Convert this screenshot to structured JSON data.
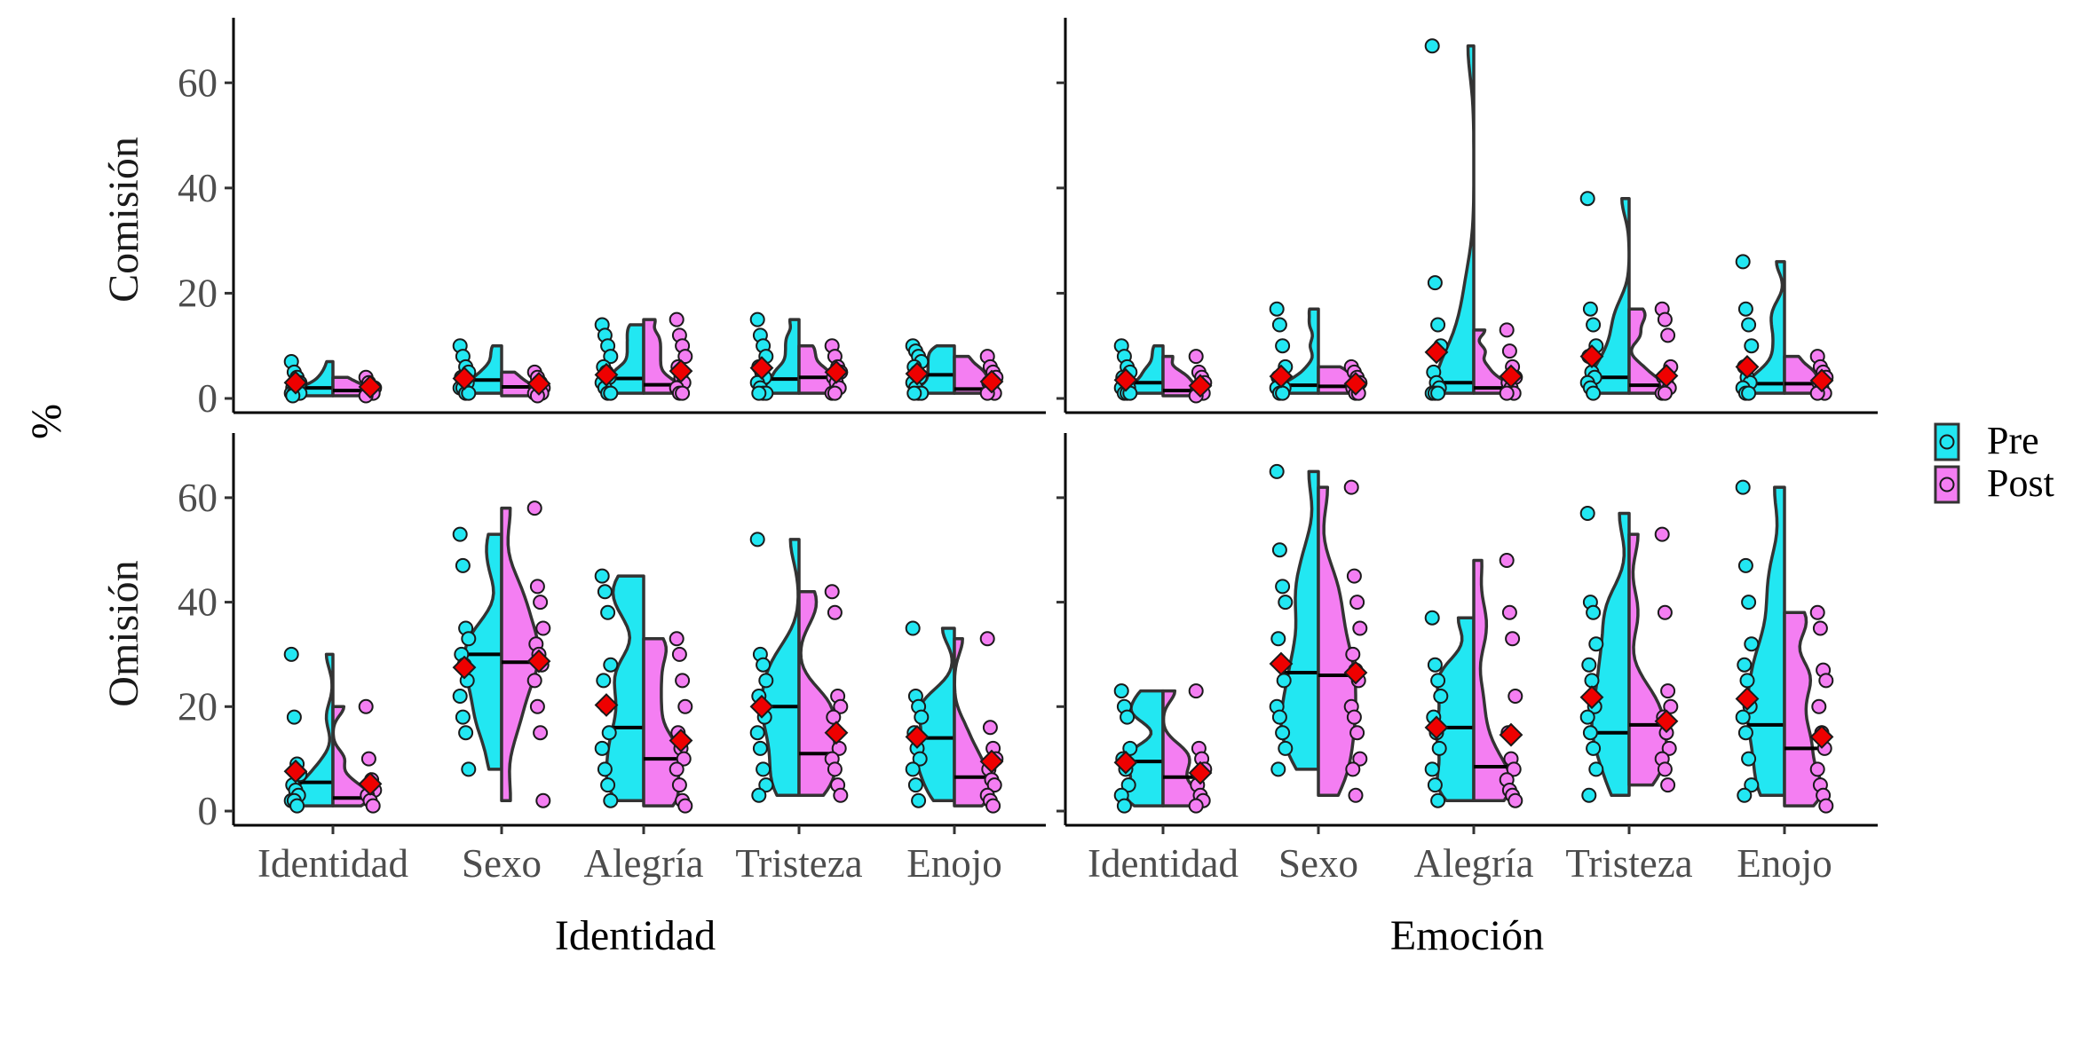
{
  "chart_data": {
    "type": "violin-point",
    "ylabel": "%",
    "ylim": [
      0,
      70
    ],
    "y_ticks": [
      0,
      20,
      40,
      60
    ],
    "row_labels": [
      "Comisión",
      "Omisión"
    ],
    "panel_xlabels": [
      "Identidad",
      "Emoción"
    ],
    "categories": [
      "Identidad",
      "Sexo",
      "Alegría",
      "Tristeza",
      "Enojo"
    ],
    "legend": {
      "position": "right",
      "entries": [
        "Pre",
        "Post"
      ]
    },
    "colors": {
      "pre": "#22e7f2",
      "post": "#f47ef2",
      "mean_marker": "#ee0000",
      "outline": "#333333"
    },
    "panels": [
      {
        "row": 0,
        "col": 0,
        "pre": [
          {
            "pts": [
              7,
              5,
              4,
              3,
              2,
              2,
              1,
              1,
              1,
              1,
              1,
              0.5
            ],
            "median": 2,
            "mean": 3
          },
          {
            "pts": [
              10,
              8,
              6,
              5,
              4,
              3,
              3,
              2,
              2,
              1,
              1
            ],
            "median": 3.5,
            "mean": 3.8
          },
          {
            "pts": [
              14,
              12,
              10,
              8,
              6,
              5,
              4,
              3,
              2,
              1,
              1
            ],
            "median": 3.8,
            "mean": 4.5
          },
          {
            "pts": [
              15,
              12,
              10,
              8,
              6,
              5,
              4,
              3,
              2,
              1,
              1,
              1
            ],
            "median": 3.7,
            "mean": 5.8
          },
          {
            "pts": [
              10,
              9,
              8,
              7,
              6,
              5,
              4,
              3,
              2,
              1,
              1,
              1
            ],
            "median": 4.5,
            "mean": 4.7
          }
        ],
        "post": [
          {
            "pts": [
              4,
              3,
              2,
              2,
              1,
              1,
              1,
              0.5
            ],
            "median": 1.5,
            "mean": 2.2
          },
          {
            "pts": [
              5,
              4,
              3,
              2,
              2,
              1,
              1,
              1,
              0.5
            ],
            "median": 2.2,
            "mean": 2.8
          },
          {
            "pts": [
              15,
              12,
              10,
              8,
              6,
              4,
              3,
              2,
              1,
              1
            ],
            "median": 2.6,
            "mean": 5.2
          },
          {
            "pts": [
              10,
              8,
              6,
              5,
              4,
              3,
              2,
              1,
              1
            ],
            "median": 4,
            "mean": 5
          },
          {
            "pts": [
              8,
              6,
              5,
              4,
              3,
              2,
              1,
              1
            ],
            "median": 1.8,
            "mean": 3.2
          }
        ]
      },
      {
        "row": 0,
        "col": 1,
        "pre": [
          {
            "pts": [
              10,
              8,
              6,
              5,
              4,
              3,
              2,
              2,
              1,
              1,
              1
            ],
            "median": 3,
            "mean": 3.5
          },
          {
            "pts": [
              17,
              14,
              10,
              6,
              4,
              3,
              2,
              2,
              1,
              1
            ],
            "median": 2.5,
            "mean": 4.2
          },
          {
            "pts": [
              67,
              22,
              14,
              10,
              5,
              3,
              2,
              1,
              1,
              1
            ],
            "median": 3,
            "mean": 8.8
          },
          {
            "pts": [
              38,
              17,
              14,
              10,
              8,
              5,
              4,
              3,
              2,
              1
            ],
            "median": 4,
            "mean": 8
          },
          {
            "pts": [
              26,
              17,
              14,
              10,
              6,
              4,
              3,
              2,
              1,
              1
            ],
            "median": 2.8,
            "mean": 6
          }
        ],
        "post": [
          {
            "pts": [
              8,
              5,
              4,
              3,
              2,
              1,
              1,
              0.5
            ],
            "median": 1.5,
            "mean": 2.4
          },
          {
            "pts": [
              6,
              5,
              4,
              3,
              2,
              1,
              1
            ],
            "median": 2.3,
            "mean": 2.8
          },
          {
            "pts": [
              13,
              9,
              6,
              4,
              3,
              2,
              1,
              1
            ],
            "median": 2,
            "mean": 4.2
          },
          {
            "pts": [
              17,
              15,
              12,
              6,
              4,
              3,
              2,
              1,
              1
            ],
            "median": 2.5,
            "mean": 4.3
          },
          {
            "pts": [
              8,
              6,
              5,
              4,
              3,
              2,
              1,
              1
            ],
            "median": 2.8,
            "mean": 3.4
          }
        ]
      },
      {
        "row": 1,
        "col": 0,
        "pre": [
          {
            "pts": [
              30,
              18,
              9,
              7,
              5,
              4,
              3,
              2,
              2,
              1
            ],
            "median": 5.5,
            "mean": 7.6
          },
          {
            "pts": [
              53,
              47,
              35,
              33,
              30,
              28,
              25,
              22,
              18,
              15,
              8
            ],
            "median": 30,
            "mean": 27.5
          },
          {
            "pts": [
              45,
              42,
              38,
              28,
              25,
              20,
              15,
              12,
              8,
              5,
              2
            ],
            "median": 16,
            "mean": 20.3
          },
          {
            "pts": [
              52,
              30,
              28,
              25,
              22,
              20,
              18,
              15,
              12,
              8,
              5,
              3
            ],
            "median": 20,
            "mean": 20
          },
          {
            "pts": [
              35,
              22,
              20,
              18,
              15,
              12,
              10,
              8,
              5,
              2
            ],
            "median": 14,
            "mean": 14.2
          }
        ],
        "post": [
          {
            "pts": [
              20,
              10,
              6,
              4,
              3,
              2,
              1
            ],
            "median": 2.5,
            "mean": 5.2
          },
          {
            "pts": [
              58,
              43,
              40,
              35,
              32,
              30,
              28,
              25,
              20,
              15,
              2
            ],
            "median": 28.5,
            "mean": 28.7
          },
          {
            "pts": [
              33,
              30,
              25,
              20,
              15,
              12,
              10,
              8,
              5,
              2,
              1
            ],
            "median": 10,
            "mean": 13.5
          },
          {
            "pts": [
              42,
              38,
              22,
              20,
              18,
              15,
              12,
              10,
              8,
              5,
              3
            ],
            "median": 11,
            "mean": 15
          },
          {
            "pts": [
              33,
              16,
              12,
              10,
              8,
              6,
              5,
              3,
              2,
              1
            ],
            "median": 6.5,
            "mean": 9.5
          }
        ]
      },
      {
        "row": 1,
        "col": 1,
        "pre": [
          {
            "pts": [
              23,
              20,
              18,
              12,
              10,
              8,
              5,
              3,
              1
            ],
            "median": 9.5,
            "mean": 9.3
          },
          {
            "pts": [
              65,
              50,
              43,
              40,
              33,
              28,
              25,
              20,
              18,
              15,
              12,
              8
            ],
            "median": 26.5,
            "mean": 28.2
          },
          {
            "pts": [
              37,
              28,
              25,
              22,
              18,
              15,
              12,
              8,
              5,
              2
            ],
            "median": 16,
            "mean": 16
          },
          {
            "pts": [
              57,
              40,
              38,
              32,
              28,
              25,
              20,
              18,
              15,
              12,
              8,
              3
            ],
            "median": 15,
            "mean": 21.8
          },
          {
            "pts": [
              62,
              47,
              40,
              32,
              28,
              25,
              20,
              18,
              15,
              10,
              5,
              3
            ],
            "median": 16.5,
            "mean": 21.5
          }
        ],
        "post": [
          {
            "pts": [
              23,
              12,
              10,
              8,
              5,
              3,
              2,
              1
            ],
            "median": 6.5,
            "mean": 7.3
          },
          {
            "pts": [
              62,
              45,
              40,
              35,
              30,
              27,
              25,
              20,
              18,
              15,
              10,
              8,
              3
            ],
            "median": 26,
            "mean": 26.5
          },
          {
            "pts": [
              48,
              38,
              33,
              22,
              15,
              10,
              8,
              6,
              4,
              3,
              2
            ],
            "median": 8.5,
            "mean": 14.6
          },
          {
            "pts": [
              53,
              38,
              23,
              20,
              18,
              15,
              12,
              10,
              8,
              5
            ],
            "median": 16.5,
            "mean": 17.2
          },
          {
            "pts": [
              38,
              35,
              27,
              25,
              20,
              15,
              12,
              8,
              5,
              3,
              1
            ],
            "median": 12,
            "mean": 14.2
          }
        ]
      }
    ]
  }
}
